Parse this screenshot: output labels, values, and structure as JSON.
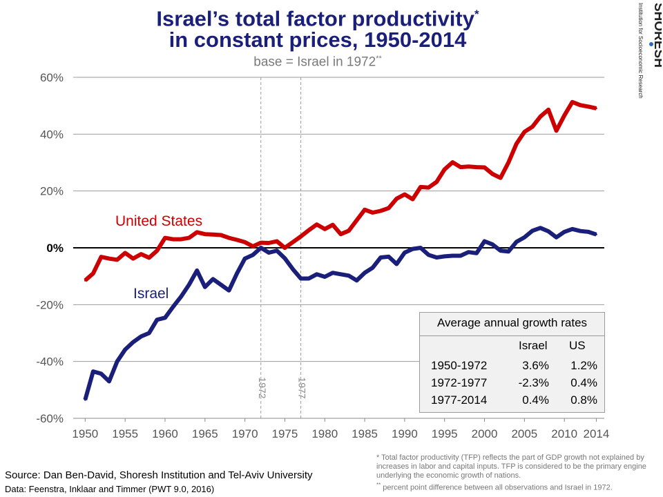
{
  "title": {
    "line1": "Israel’s total factor productivity",
    "line1_mark": "*",
    "line2": "in constant prices, 1950-2014",
    "subtitle": "base = Israel in 1972",
    "subtitle_mark": "**"
  },
  "logo": {
    "name": "SHORESH",
    "tagline": "Institution for Socioeconomic Research"
  },
  "source": "Source: Dan Ben-David, Shoresh Institution and Tel-Aviv University",
  "data_source": "Data: Feenstra, Inklaar and Timmer (PWT 9.0, 2016)",
  "footnotes": {
    "note1": "* Total factor productivity (TFP) reflects the part of GDP growth not explained by increases in labor and capital inputs.  TFP is considered to be the primary engine underlying the economic growth of nations.",
    "note2_mark": "**",
    "note2": " percent point difference between all observations and Israel in 1972."
  },
  "growth_table": {
    "title": "Average annual growth rates",
    "columns": [
      "Israel",
      "US"
    ],
    "rows": [
      {
        "period": "1950-1972",
        "israel": "3.6%",
        "us": "1.2%"
      },
      {
        "period": "1972-1977",
        "israel": "-2.3%",
        "us": "0.4%"
      },
      {
        "period": "1977-2014",
        "israel": "0.4%",
        "us": "0.8%"
      }
    ]
  },
  "chart_data": {
    "type": "line",
    "xlim": [
      1948.5,
      2015
    ],
    "ylim": [
      -60,
      60
    ],
    "x_ticks": [
      1950,
      1955,
      1960,
      1965,
      1970,
      1975,
      1980,
      1985,
      1990,
      1995,
      2000,
      2005,
      2010,
      2014
    ],
    "x_tick_labels": [
      "1950",
      "1955",
      "1960",
      "1965",
      "1970",
      "1975",
      "1980",
      "1985",
      "1990",
      "1995",
      "2000",
      "2005",
      "2010",
      "2014"
    ],
    "y_ticks": [
      60,
      40,
      20,
      0,
      -20,
      -40,
      -60
    ],
    "y_tick_labels": [
      "60%",
      "40%",
      "20%",
      "0%",
      "-20%",
      "-40%",
      "-60%"
    ],
    "grid": true,
    "vertical_markers": [
      {
        "x": 1972,
        "label": "1972"
      },
      {
        "x": 1977,
        "label": "1977"
      }
    ],
    "series": [
      {
        "name": "United States",
        "color": "#cc0000",
        "x": [
          1950,
          1951,
          1952,
          1953,
          1954,
          1955,
          1956,
          1957,
          1958,
          1959,
          1960,
          1961,
          1962,
          1963,
          1964,
          1965,
          1966,
          1967,
          1968,
          1969,
          1970,
          1971,
          1972,
          1973,
          1974,
          1975,
          1976,
          1977,
          1978,
          1979,
          1980,
          1981,
          1982,
          1983,
          1984,
          1985,
          1986,
          1987,
          1988,
          1989,
          1990,
          1991,
          1992,
          1993,
          1994,
          1995,
          1996,
          1997,
          1998,
          1999,
          2000,
          2001,
          2002,
          2003,
          2004,
          2005,
          2006,
          2007,
          2008,
          2009,
          2010,
          2011,
          2012,
          2013,
          2014
        ],
        "y": [
          -11.5,
          -9,
          -3.2,
          -3.8,
          -4.2,
          -1.8,
          -3.8,
          -2.2,
          -3.5,
          -1,
          3.5,
          3,
          3,
          3.5,
          5.5,
          4.8,
          4.7,
          4.5,
          3.5,
          2.8,
          2,
          0.5,
          1.8,
          1.7,
          2.3,
          0,
          2,
          4,
          6.2,
          8.2,
          6.6,
          8.1,
          4.8,
          6,
          9.7,
          13.4,
          12.4,
          13,
          14,
          17.3,
          18.8,
          17.1,
          21.4,
          21.2,
          23.2,
          27.6,
          30.1,
          28.4,
          28.6,
          28.4,
          28.3,
          26,
          24.6,
          30,
          36.6,
          40.8,
          42.6,
          46.2,
          48.6,
          41.2,
          46.6,
          51.3,
          50.2,
          49.7,
          49.1
        ]
      },
      {
        "name": "Israel",
        "color": "#1a1f7a",
        "x": [
          1950,
          1951,
          1952,
          1953,
          1954,
          1955,
          1956,
          1957,
          1958,
          1959,
          1960,
          1961,
          1962,
          1963,
          1964,
          1965,
          1966,
          1967,
          1968,
          1969,
          1970,
          1971,
          1972,
          1973,
          1974,
          1975,
          1976,
          1977,
          1978,
          1979,
          1980,
          1981,
          1982,
          1983,
          1984,
          1985,
          1986,
          1987,
          1988,
          1989,
          1990,
          1991,
          1992,
          1993,
          1994,
          1995,
          1996,
          1997,
          1998,
          1999,
          2000,
          2001,
          2002,
          2003,
          2004,
          2005,
          2006,
          2007,
          2008,
          2009,
          2010,
          2011,
          2012,
          2013,
          2014
        ],
        "y": [
          -53.5,
          -43.5,
          -44.3,
          -47,
          -40,
          -35.8,
          -33.2,
          -31.2,
          -30,
          -25.3,
          -24.6,
          -20.8,
          -17.2,
          -13,
          -8,
          -13.8,
          -11,
          -13,
          -15,
          -9,
          -3.8,
          -2.5,
          0,
          -1.7,
          -1,
          -3.7,
          -7.5,
          -10.8,
          -10.8,
          -9.3,
          -10.2,
          -8.8,
          -9.3,
          -9.8,
          -11.5,
          -8.8,
          -7,
          -3.4,
          -3.1,
          -5.7,
          -1.7,
          -0.4,
          0,
          -2.5,
          -3.4,
          -3,
          -2.8,
          -2.8,
          -1.5,
          -1.9,
          2.3,
          1.2,
          -1,
          -1.3,
          2.1,
          3.7,
          6,
          7,
          5.8,
          3.7,
          5.6,
          6.6,
          5.9,
          5.6,
          4.7
        ]
      }
    ],
    "series_labels": [
      "United States",
      "Israel"
    ]
  }
}
